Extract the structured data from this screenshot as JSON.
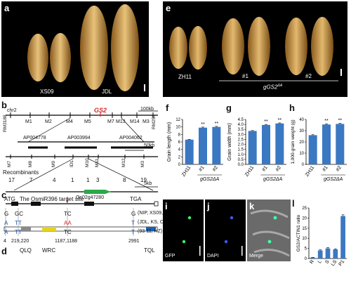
{
  "panels": {
    "a": {
      "letter": "a",
      "label_left": "XS09",
      "label_right": "JDL"
    },
    "e": {
      "letter": "e",
      "label_ctrl": "ZH11",
      "label_1": "#1",
      "label_2": "#2",
      "group": "gGS2",
      "group_sup": "ΔA"
    },
    "b": {
      "letter": "b",
      "chr": "chr2",
      "scale": "100kb",
      "gene": "GS2",
      "markers": [
        "RM3188",
        "M1",
        "M2",
        "M4",
        "M5",
        "M7",
        "M13",
        "M14",
        "M3",
        "RM250"
      ],
      "bacs": [
        "AP004778",
        "AP003994",
        "AP004062"
      ],
      "scale2": "50kb",
      "fine_markers": [
        "M7",
        "M8",
        "M9",
        "IDL",
        "M10",
        "M11",
        "M12",
        "M3"
      ],
      "recombinants_label": "Recombinants",
      "recombinants": [
        "17",
        "7",
        "4",
        "1",
        "1",
        "3",
        "8",
        "19"
      ],
      "scale3": "5kb",
      "gene_model": "Os02g47280"
    },
    "c": {
      "letter": "c",
      "atg": "ATG",
      "title": "The OsmiR396 target site",
      "tga": "TGA",
      "rows": [
        {
          "a": "G",
          "b": "GC",
          "c": "TC",
          "d": "G",
          "note": "(NIP, XS09, ZH11)"
        },
        {
          "a": "A",
          "b": "TT",
          "c": "AA",
          "d": "T",
          "note": "(JDL, KS, CDL)"
        },
        {
          "a": "A",
          "b": "TT",
          "c": "TC",
          "d": "T",
          "note": "(93-11, HZ)"
        }
      ],
      "positions": [
        "4",
        "219,220",
        "1187,1188",
        "2991"
      ]
    },
    "d": {
      "letter": "d",
      "domains": [
        "QLQ",
        "WRC",
        "TQL"
      ]
    },
    "f": {
      "letter": "f",
      "ylabel": "Grain length (mm)"
    },
    "g": {
      "letter": "g",
      "ylabel": "Grain width (mm)"
    },
    "h": {
      "letter": "h",
      "ylabel": "1,000-grain weight (g)"
    },
    "i": {
      "letter": "i",
      "caption": "GFP"
    },
    "j": {
      "letter": "j",
      "caption": "DAPI"
    },
    "k": {
      "letter": "k",
      "caption": "Merge"
    },
    "l": {
      "letter": "l",
      "ylabel": "GS2/ACTIN1 ratio"
    }
  },
  "chart_data": [
    {
      "type": "bar",
      "panel": "f",
      "categories": [
        "ZH11",
        "#1",
        "#2"
      ],
      "values": [
        6.6,
        9.8,
        10.0
      ],
      "errors": [
        0.1,
        0.15,
        0.15
      ],
      "ylim": [
        0,
        12
      ],
      "yticks": [
        0,
        2,
        4,
        6,
        8,
        10,
        12
      ],
      "ylabel": "Grain length (mm)",
      "sig": [
        "",
        "**",
        "**"
      ],
      "group_label": "gGS2ΔA",
      "color": "#3a78c2"
    },
    {
      "type": "bar",
      "panel": "g",
      "categories": [
        "ZH11",
        "#1",
        "#2"
      ],
      "values": [
        3.35,
        3.95,
        4.1
      ],
      "errors": [
        0.04,
        0.05,
        0.05
      ],
      "ylim": [
        0,
        4.5
      ],
      "yticks": [
        0,
        0.5,
        1.0,
        1.5,
        2.0,
        2.5,
        3.0,
        3.5,
        4.0,
        4.5
      ],
      "ylabel": "Grain width (mm)",
      "sig": [
        "",
        "**",
        "**"
      ],
      "group_label": "gGS2ΔA",
      "color": "#3a78c2"
    },
    {
      "type": "bar",
      "panel": "h",
      "categories": [
        "ZH11",
        "#1",
        "#2"
      ],
      "values": [
        26,
        35.5,
        36
      ],
      "errors": [
        0.4,
        0.6,
        0.6
      ],
      "ylim": [
        0,
        40
      ],
      "yticks": [
        0,
        10,
        20,
        30,
        40
      ],
      "ylabel": "1,000-grain weight (g)",
      "sig": [
        "",
        "**",
        "**"
      ],
      "group_label": "gGS2ΔA",
      "color": "#3a78c2"
    },
    {
      "type": "bar",
      "panel": "l",
      "categories": [
        "R",
        "L",
        "S",
        "LS",
        "P1"
      ],
      "values": [
        0.5,
        4,
        5,
        4.5,
        21
      ],
      "errors": [
        0.1,
        0.3,
        0.4,
        0.3,
        0.6
      ],
      "ylim": [
        0,
        25
      ],
      "yticks": [
        0,
        5,
        10,
        15,
        20,
        25
      ],
      "ylabel": "GS2/ACTIN1 ratio",
      "color": "#3a78c2"
    }
  ]
}
